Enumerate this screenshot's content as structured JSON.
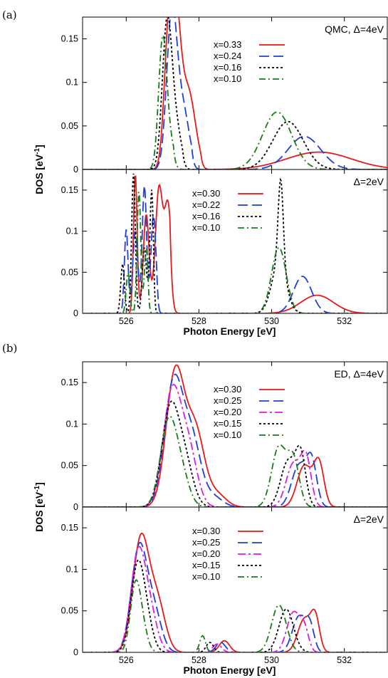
{
  "figure": {
    "label_a": "(a)",
    "label_b": "(b)",
    "xlabel": "Photon Energy [eV]",
    "ylabel": "DOS [eV",
    "ylabel_sup": "-1",
    "ylabel_end": "]"
  },
  "colors": {
    "red": "#e41a1c",
    "blue": "#1f3fd6",
    "magenta": "#e01ae0",
    "black": "#000000",
    "green": "#1a7a1a"
  },
  "chart_data": [
    {
      "id": "a-top",
      "type": "line",
      "title": "QMC, Δ=4eV",
      "xlabel": "",
      "ylabel": "DOS [eV-1]",
      "xlim": [
        524.8,
        533.2
      ],
      "ylim": [
        0,
        0.175
      ],
      "xticks": [
        526,
        528,
        530,
        532
      ],
      "yticks": [
        0,
        0.05,
        0.1,
        0.15
      ],
      "ytick_labels": [
        "0",
        "0.05",
        "0.1",
        "0.15"
      ],
      "legend_position": "top-right",
      "series": [
        {
          "name": "x=0.33",
          "style": "solid",
          "color": "red",
          "peaks": [
            [
              527.15,
              0.118,
              0.12
            ],
            [
              527.35,
              0.165,
              0.14
            ],
            [
              527.7,
              0.09,
              0.2
            ],
            [
              531.3,
              0.02,
              0.9
            ]
          ],
          "edge": 528.05
        },
        {
          "name": "x=0.24",
          "style": "dashed",
          "color": "blue",
          "peaks": [
            [
              527.25,
              0.17,
              0.14
            ],
            [
              527.55,
              0.07,
              0.18
            ],
            [
              530.9,
              0.038,
              0.45
            ]
          ],
          "edge": 527.8
        },
        {
          "name": "x=0.16",
          "style": "dotted",
          "color": "black",
          "peaks": [
            [
              527.12,
              0.158,
              0.13
            ],
            [
              527.35,
              0.05,
              0.16
            ],
            [
              530.45,
              0.055,
              0.42
            ]
          ],
          "edge": 527.55
        },
        {
          "name": "x=0.10",
          "style": "dashdot",
          "color": "green",
          "peaks": [
            [
              527.0,
              0.143,
              0.11
            ],
            [
              527.2,
              0.03,
              0.14
            ],
            [
              530.15,
              0.066,
              0.4
            ]
          ],
          "edge": 527.3
        }
      ]
    },
    {
      "id": "a-bottom",
      "type": "line",
      "title": "Δ=2eV",
      "xlabel": "Photon Energy [eV]",
      "ylabel": "DOS [eV-1]",
      "xlim": [
        524.8,
        533.2
      ],
      "ylim": [
        0,
        0.175
      ],
      "xticks": [
        526,
        528,
        530,
        532
      ],
      "yticks": [
        0,
        0.05,
        0.1,
        0.15
      ],
      "ytick_labels": [
        "0",
        "0.05",
        "0.1",
        "0.15"
      ],
      "legend_position": "top-center",
      "series": [
        {
          "name": "x=0.30",
          "style": "solid",
          "color": "red",
          "peaks": [
            [
              526.25,
              0.17,
              0.05
            ],
            [
              526.55,
              0.12,
              0.08
            ],
            [
              526.9,
              0.15,
              0.1
            ],
            [
              527.15,
              0.13,
              0.1
            ],
            [
              531.25,
              0.022,
              0.45
            ]
          ],
          "edge": 527.2
        },
        {
          "name": "x=0.22",
          "style": "dashed",
          "color": "blue",
          "peaks": [
            [
              526.0,
              0.102,
              0.05
            ],
            [
              526.25,
              0.1,
              0.07
            ],
            [
              526.5,
              0.155,
              0.06
            ],
            [
              526.75,
              0.12,
              0.07
            ],
            [
              530.85,
              0.045,
              0.25
            ]
          ],
          "edge": 526.85
        },
        {
          "name": "x=0.16",
          "style": "dotted",
          "color": "black",
          "peaks": [
            [
              525.9,
              0.06,
              0.05
            ],
            [
              526.2,
              0.17,
              0.05
            ],
            [
              526.5,
              0.08,
              0.06
            ],
            [
              526.7,
              0.15,
              0.05
            ],
            [
              530.25,
              0.105,
              0.07
            ],
            [
              530.2,
              0.06,
              0.2
            ]
          ],
          "edge": 526.75
        },
        {
          "name": "x=0.10",
          "style": "dashdot",
          "color": "green",
          "peaks": [
            [
              526.05,
              0.05,
              0.05
            ],
            [
              526.35,
              0.15,
              0.05
            ],
            [
              526.55,
              0.08,
              0.05
            ],
            [
              530.2,
              0.08,
              0.2
            ]
          ],
          "edge": 526.6
        }
      ]
    },
    {
      "id": "b-top",
      "type": "line",
      "title": "ED, Δ=4eV",
      "xlabel": "",
      "ylabel": "DOS [eV-1]",
      "xlim": [
        524.8,
        533.2
      ],
      "ylim": [
        0,
        0.175
      ],
      "xticks": [
        526,
        528,
        530,
        532
      ],
      "yticks": [
        0,
        0.05,
        0.1,
        0.15
      ],
      "ytick_labels": [
        "0",
        "0.05",
        "0.1",
        "0.15"
      ],
      "legend_position": "top-right",
      "series": [
        {
          "name": "x=0.30",
          "style": "solid",
          "color": "red",
          "peaks": [
            [
              527.35,
              0.162,
              0.25
            ],
            [
              527.9,
              0.09,
              0.25
            ],
            [
              528.5,
              0.015,
              0.25
            ],
            [
              530.9,
              0.05,
              0.2
            ],
            [
              531.3,
              0.052,
              0.14
            ]
          ]
        },
        {
          "name": "x=0.25",
          "style": "dashed",
          "color": "blue",
          "peaks": [
            [
              527.3,
              0.147,
              0.25
            ],
            [
              527.8,
              0.08,
              0.25
            ],
            [
              528.4,
              0.012,
              0.25
            ],
            [
              530.75,
              0.05,
              0.2
            ],
            [
              531.1,
              0.053,
              0.14
            ]
          ]
        },
        {
          "name": "x=0.20",
          "style": "dashdot2",
          "color": "magenta",
          "peaks": [
            [
              527.25,
              0.133,
              0.24
            ],
            [
              527.7,
              0.07,
              0.24
            ],
            [
              530.6,
              0.052,
              0.2
            ],
            [
              530.95,
              0.055,
              0.14
            ]
          ]
        },
        {
          "name": "x=0.15",
          "style": "dotted",
          "color": "black",
          "peaks": [
            [
              527.2,
              0.113,
              0.23
            ],
            [
              527.6,
              0.055,
              0.23
            ],
            [
              530.45,
              0.055,
              0.2
            ],
            [
              530.8,
              0.06,
              0.14
            ]
          ]
        },
        {
          "name": "x=0.10",
          "style": "dashdot",
          "color": "green",
          "peaks": [
            [
              527.15,
              0.096,
              0.22
            ],
            [
              527.5,
              0.04,
              0.22
            ],
            [
              530.2,
              0.072,
              0.2
            ],
            [
              530.6,
              0.055,
              0.16
            ]
          ]
        }
      ]
    },
    {
      "id": "b-bottom",
      "type": "line",
      "title": "Δ=2eV",
      "xlabel": "Photon Energy [eV]",
      "ylabel": "DOS [eV-1]",
      "xlim": [
        524.8,
        533.2
      ],
      "ylim": [
        0,
        0.175
      ],
      "xticks": [
        526,
        528,
        530,
        532
      ],
      "yticks": [
        0,
        0.05,
        0.1,
        0.15
      ],
      "ytick_labels": [
        "0",
        "0.05",
        "0.1",
        "0.15"
      ],
      "legend_position": "top-center",
      "series": [
        {
          "name": "x=0.30",
          "style": "solid",
          "color": "red",
          "peaks": [
            [
              526.4,
              0.135,
              0.22
            ],
            [
              526.85,
              0.06,
              0.22
            ],
            [
              528.7,
              0.014,
              0.14
            ],
            [
              530.9,
              0.04,
              0.18
            ],
            [
              531.2,
              0.04,
              0.12
            ]
          ]
        },
        {
          "name": "x=0.25",
          "style": "dashed",
          "color": "blue",
          "peaks": [
            [
              526.35,
              0.123,
              0.21
            ],
            [
              526.75,
              0.05,
              0.21
            ],
            [
              528.6,
              0.012,
              0.13
            ],
            [
              530.75,
              0.043,
              0.18
            ],
            [
              531.05,
              0.03,
              0.12
            ]
          ]
        },
        {
          "name": "x=0.20",
          "style": "dashdot2",
          "color": "magenta",
          "peaks": [
            [
              526.32,
              0.114,
              0.2
            ],
            [
              526.65,
              0.045,
              0.2
            ],
            [
              528.5,
              0.01,
              0.12
            ],
            [
              530.6,
              0.048,
              0.18
            ],
            [
              530.9,
              0.025,
              0.12
            ]
          ]
        },
        {
          "name": "x=0.15",
          "style": "dotted",
          "color": "black",
          "peaks": [
            [
              526.3,
              0.096,
              0.18
            ],
            [
              526.55,
              0.035,
              0.18
            ],
            [
              528.3,
              0.012,
              0.1
            ],
            [
              530.4,
              0.052,
              0.2
            ]
          ]
        },
        {
          "name": "x=0.10",
          "style": "dashdot",
          "color": "green",
          "peaks": [
            [
              526.25,
              0.077,
              0.14
            ],
            [
              526.45,
              0.025,
              0.14
            ],
            [
              528.1,
              0.02,
              0.08
            ],
            [
              530.2,
              0.057,
              0.2
            ]
          ]
        }
      ]
    }
  ]
}
